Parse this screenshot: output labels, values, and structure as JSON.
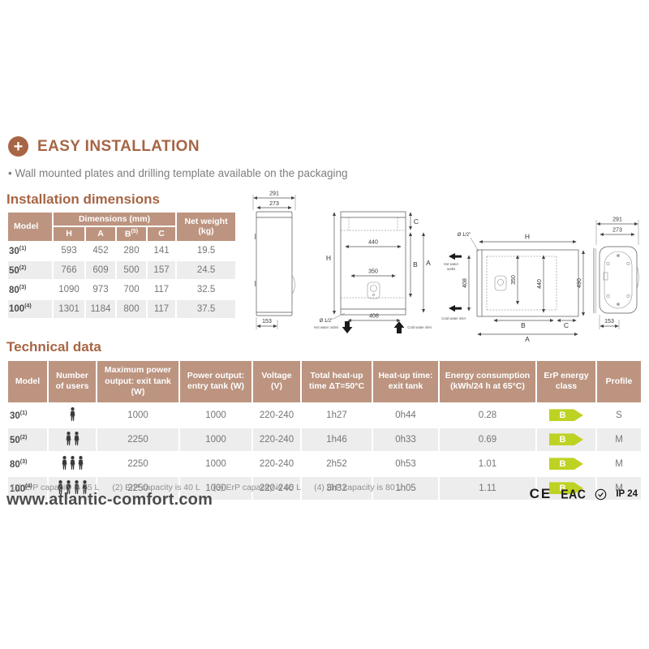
{
  "colors": {
    "accent": "#a76545",
    "table_header_bg": "#bc9480",
    "row_alt_bg": "#ededed",
    "erp_badge": "#bed223"
  },
  "header": {
    "icon": "plus-icon",
    "title": "EASY INSTALLATION",
    "bullet": "• Wall mounted plates and drilling template available on the packaging"
  },
  "sections": {
    "installation": "Installation dimensions",
    "technical": "Technical data"
  },
  "installation_table": {
    "col_model": "Model",
    "col_dimensions": "Dimensions (mm)",
    "col_weight": "Net weight (kg)",
    "sub_cols": [
      "H",
      "A",
      "B",
      "C"
    ],
    "b_sup": "(5)",
    "rows": [
      {
        "model": "30",
        "sup": "(1)",
        "h": "593",
        "a": "452",
        "b": "280",
        "c": "141",
        "weight": "19.5"
      },
      {
        "model": "50",
        "sup": "(2)",
        "h": "766",
        "a": "609",
        "b": "500",
        "c": "157",
        "weight": "24.5"
      },
      {
        "model": "80",
        "sup": "(3)",
        "h": "1090",
        "a": "973",
        "b": "700",
        "c": "117",
        "weight": "32.5"
      },
      {
        "model": "100",
        "sup": "(4)",
        "h": "1301",
        "a": "1184",
        "b": "800",
        "c": "117",
        "weight": "37.5"
      }
    ]
  },
  "drawings": {
    "side_view": {
      "top_dim1": "291",
      "top_dim2": "273",
      "bottom_dim": "153"
    },
    "front_view": {
      "height": "H",
      "top": "C",
      "inner": "B",
      "outer": "A",
      "width1": "440",
      "width2": "350",
      "bottom_width": "408",
      "pipe": "Ø 1/2\"",
      "hot1": "Hot water outlet",
      "cold1": "Cold water inlet"
    },
    "horizontal_view": {
      "top": "H",
      "pipe": "Ø 1/2\"",
      "hot1": "Hot water",
      "hot2": "outlet",
      "cold1": "Cold water inlet",
      "left_dim": "408",
      "mid_dim1": "350",
      "mid_dim2": "440",
      "right_dim": "490",
      "bottom1": "B",
      "bottom2": "C",
      "bottom3": "A"
    },
    "back_view": {
      "top_dim1": "291",
      "top_dim2": "273",
      "bottom_dim": "153"
    }
  },
  "technical_table": {
    "headers": {
      "model": "Model",
      "users": "Number of users",
      "max_power": "Maximum power output: exit tank (W)",
      "power_entry": "Power output: entry tank (W)",
      "voltage": "Voltage (V)",
      "total_heatup": "Total heat-up time ΔT=50°C",
      "heatup_exit": "Heat-up time: exit tank",
      "energy": "Energy consumption (kWh/24 h at 65°C)",
      "erp": "ErP energy class",
      "profile": "Profile"
    },
    "rows": [
      {
        "model": "30",
        "sup": "(1)",
        "users": 1,
        "max_power": "1000",
        "power_entry": "1000",
        "voltage": "220-240",
        "total_heatup": "1h27",
        "heatup_exit": "0h44",
        "energy": "0.28",
        "erp": "B",
        "profile": "S"
      },
      {
        "model": "50",
        "sup": "(2)",
        "users": 2,
        "max_power": "2250",
        "power_entry": "1000",
        "voltage": "220-240",
        "total_heatup": "1h46",
        "heatup_exit": "0h33",
        "energy": "0.69",
        "erp": "B",
        "profile": "M"
      },
      {
        "model": "80",
        "sup": "(3)",
        "users": 3,
        "max_power": "2250",
        "power_entry": "1000",
        "voltage": "220-240",
        "total_heatup": "2h52",
        "heatup_exit": "0h53",
        "energy": "1.01",
        "erp": "B",
        "profile": "M"
      },
      {
        "model": "100",
        "sup": "(4)",
        "users": 4,
        "max_power": "2250",
        "power_entry": "1000",
        "voltage": "220-240",
        "total_heatup": "3h32",
        "heatup_exit": "1h05",
        "energy": "1.11",
        "erp": "B",
        "profile": "M"
      }
    ]
  },
  "footnotes": [
    "(1) ErP capacity is 25 L",
    "(2) ErP capacity is 40 L",
    "(3) ErP capacity is 65 L",
    "(4) ErP capacity is 80 L"
  ],
  "footer": {
    "url": "www.atlantic-comfort.com",
    "marks": {
      "ce": "CE",
      "eac": "EAC",
      "ip": "IP 24"
    }
  }
}
